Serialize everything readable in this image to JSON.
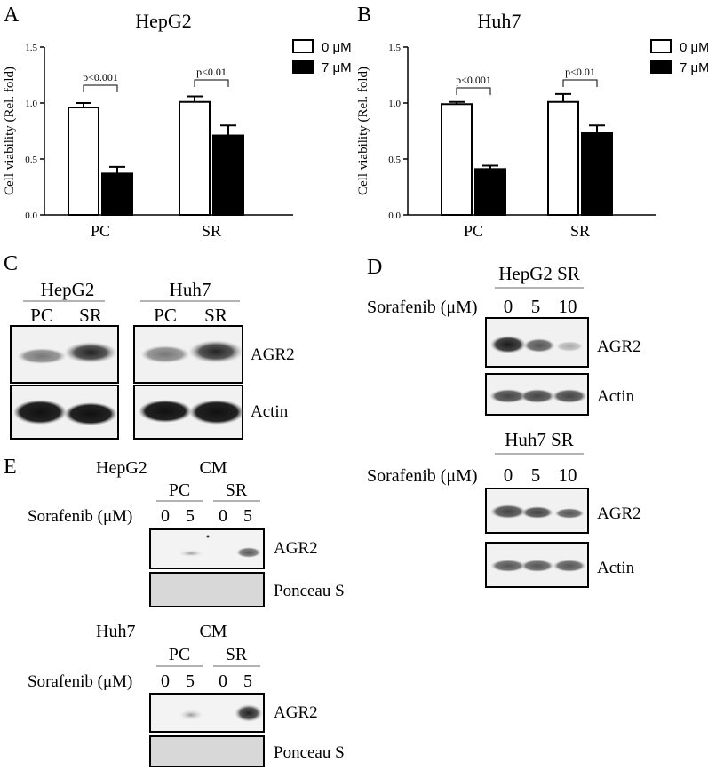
{
  "panel_letters": {
    "a": "A",
    "b": "B",
    "c": "C",
    "d": "D",
    "e": "E"
  },
  "chart_data": [
    {
      "type": "bar",
      "title": "HepG2",
      "ylabel": "Cell viability (Rel. fold)",
      "xlabel": "",
      "categories": [
        "PC",
        "SR"
      ],
      "ylim": [
        0,
        1.5
      ],
      "yticks": [
        "0.0",
        "0.5",
        "1.0",
        "1.5"
      ],
      "series": [
        {
          "name": "0 μM",
          "values": [
            0.96,
            1.01
          ],
          "errors": [
            0.04,
            0.05
          ],
          "color": "#ffffff"
        },
        {
          "name": "7 μM",
          "values": [
            0.37,
            0.71
          ],
          "errors": [
            0.06,
            0.09
          ],
          "color": "#000000"
        }
      ],
      "annotations": [
        "p<0.001",
        "p<0.01"
      ],
      "legend": "top-right"
    },
    {
      "type": "bar",
      "title": "Huh7",
      "ylabel": "Cell viability (Rel. fold)",
      "xlabel": "",
      "categories": [
        "PC",
        "SR"
      ],
      "ylim": [
        0,
        1.5
      ],
      "yticks": [
        "0.0",
        "0.5",
        "1.0",
        "1.5"
      ],
      "series": [
        {
          "name": "0 μM",
          "values": [
            0.99,
            1.01
          ],
          "errors": [
            0.02,
            0.07
          ],
          "color": "#ffffff"
        },
        {
          "name": "7 μM",
          "values": [
            0.41,
            0.73
          ],
          "errors": [
            0.03,
            0.07
          ],
          "color": "#000000"
        }
      ],
      "annotations": [
        "p<0.001",
        "p<0.01"
      ],
      "legend": "top-right"
    }
  ],
  "panel_c": {
    "groups": [
      "HepG2",
      "Huh7"
    ],
    "lanes": [
      "PC",
      "SR",
      "PC",
      "SR"
    ],
    "rows": [
      "AGR2",
      "Actin"
    ]
  },
  "panel_d": {
    "top_title": "HepG2 SR",
    "bottom_title": "Huh7 SR",
    "treatment_label": "Sorafenib (μM)",
    "doses": [
      "0",
      "5",
      "10"
    ],
    "rows": [
      "AGR2",
      "Actin"
    ]
  },
  "panel_e": {
    "top_cell": "HepG2",
    "bottom_cell": "Huh7",
    "medium": "CM",
    "groups": [
      "PC",
      "SR"
    ],
    "treatment_label": "Sorafenib (μM)",
    "doses": [
      "0",
      "5",
      "0",
      "5"
    ],
    "rows": [
      "AGR2",
      "Ponceau S"
    ]
  }
}
